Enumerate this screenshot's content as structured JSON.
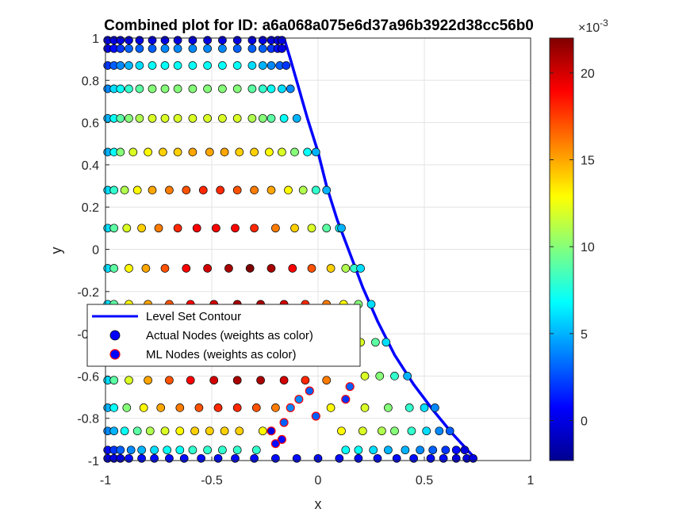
{
  "chart_data": {
    "type": "scatter",
    "title": "Combined plot for ID: a6a068a075e6d37a96b3922d38cc56b0",
    "xlabel": "x",
    "ylabel": "y",
    "xlim": [
      -1,
      1
    ],
    "ylim": [
      -1,
      1
    ],
    "x_ticks": [
      "-1",
      "-0.5",
      "0",
      "0.5",
      "1"
    ],
    "y_ticks": [
      "-1",
      "-0.8",
      "-0.6",
      "-0.4",
      "-0.2",
      "0",
      "0.2",
      "0.4",
      "0.6",
      "0.8",
      "1"
    ],
    "grid": true,
    "colormap": "jet",
    "colorbar": {
      "range": [
        -0.0023,
        0.022
      ],
      "tick_labels": [
        "0",
        "5",
        "10",
        "15",
        "20"
      ],
      "tick_values": [
        0,
        0.005,
        0.01,
        0.015,
        0.02
      ],
      "exponent_label": "×10",
      "exponent": "-3"
    },
    "legend": {
      "placement": "lower-left",
      "entries": [
        {
          "label": "Level Set Contour",
          "marker": "line",
          "color": "#0000ff"
        },
        {
          "label": "Actual Nodes (weights as color)",
          "marker": "circle",
          "color": "#0000ff"
        },
        {
          "label": "ML Nodes (weights as color)",
          "marker": "circle-red-edge",
          "color": "#0000ff"
        }
      ]
    },
    "contour": {
      "name": "Level Set Contour",
      "color": "#0000ff",
      "x": [
        -0.16,
        -0.13,
        -0.09,
        -0.05,
        0.0,
        0.04,
        0.09,
        0.15,
        0.21,
        0.28,
        0.36,
        0.45,
        0.54,
        0.63,
        0.73
      ],
      "y": [
        1.0,
        0.9,
        0.76,
        0.62,
        0.46,
        0.3,
        0.14,
        -0.02,
        -0.18,
        -0.34,
        -0.5,
        -0.64,
        -0.76,
        -0.87,
        -0.98
      ]
    },
    "series": [
      {
        "name": "Actual Nodes (weights as color)",
        "rows": [
          {
            "y": 0.99,
            "x": [
              -0.99,
              -0.96,
              -0.93,
              -0.89,
              -0.84,
              -0.78,
              -0.72,
              -0.66,
              -0.59,
              -0.52,
              -0.45,
              -0.38,
              -0.31,
              -0.26,
              -0.22,
              -0.19,
              -0.17
            ],
            "w": [
              0.0,
              0.0,
              0.0,
              0.0,
              0.0,
              0.0,
              0.0,
              0.0,
              0.0,
              0.0,
              0.0,
              0.0,
              0.0,
              0.0,
              0.0,
              0.0,
              0.0
            ]
          },
          {
            "y": 0.95,
            "x": [
              -0.99,
              -0.96,
              -0.93,
              -0.89,
              -0.84,
              -0.78,
              -0.72,
              -0.66,
              -0.59,
              -0.52,
              -0.45,
              -0.38,
              -0.31,
              -0.26,
              -0.22,
              -0.19,
              -0.17
            ],
            "w": [
              0.0,
              0.001,
              0.002,
              0.003,
              0.003,
              0.003,
              0.004,
              0.004,
              0.004,
              0.004,
              0.004,
              0.003,
              0.003,
              0.003,
              0.002,
              0.001,
              0.0
            ]
          },
          {
            "y": 0.87,
            "x": [
              -0.99,
              -0.96,
              -0.93,
              -0.89,
              -0.84,
              -0.78,
              -0.72,
              -0.66,
              -0.59,
              -0.52,
              -0.45,
              -0.38,
              -0.31,
              -0.26,
              -0.22,
              -0.18,
              -0.15
            ],
            "w": [
              0.002,
              0.003,
              0.004,
              0.005,
              0.006,
              0.007,
              0.007,
              0.007,
              0.007,
              0.007,
              0.007,
              0.007,
              0.006,
              0.005,
              0.004,
              0.003,
              0.002
            ]
          },
          {
            "y": 0.76,
            "x": [
              -0.99,
              -0.96,
              -0.93,
              -0.89,
              -0.84,
              -0.78,
              -0.72,
              -0.66,
              -0.59,
              -0.52,
              -0.45,
              -0.38,
              -0.31,
              -0.26,
              -0.22,
              -0.17,
              -0.13
            ],
            "w": [
              0.004,
              0.006,
              0.007,
              0.008,
              0.009,
              0.01,
              0.01,
              0.01,
              0.01,
              0.01,
              0.01,
              0.01,
              0.009,
              0.008,
              0.007,
              0.006,
              0.004
            ]
          },
          {
            "y": 0.62,
            "x": [
              -0.99,
              -0.96,
              -0.93,
              -0.89,
              -0.84,
              -0.78,
              -0.72,
              -0.66,
              -0.59,
              -0.52,
              -0.45,
              -0.38,
              -0.31,
              -0.26,
              -0.22,
              -0.16,
              -0.1
            ],
            "w": [
              0.005,
              0.007,
              0.009,
              0.01,
              0.011,
              0.012,
              0.012,
              0.012,
              0.012,
              0.012,
              0.012,
              0.012,
              0.011,
              0.01,
              0.009,
              0.007,
              0.005
            ]
          },
          {
            "y": 0.46,
            "x": [
              -0.99,
              -0.96,
              -0.93,
              -0.87,
              -0.8,
              -0.73,
              -0.66,
              -0.59,
              -0.51,
              -0.44,
              -0.37,
              -0.3,
              -0.23,
              -0.17,
              -0.11,
              -0.05,
              -0.01
            ],
            "w": [
              0.005,
              0.007,
              0.01,
              0.012,
              0.013,
              0.014,
              0.014,
              0.015,
              0.015,
              0.015,
              0.014,
              0.014,
              0.013,
              0.012,
              0.01,
              0.007,
              0.005
            ]
          },
          {
            "y": 0.28,
            "x": [
              -0.99,
              -0.96,
              -0.91,
              -0.85,
              -0.78,
              -0.7,
              -0.62,
              -0.54,
              -0.46,
              -0.38,
              -0.3,
              -0.22,
              -0.14,
              -0.07,
              -0.01,
              0.04
            ],
            "w": [
              0.006,
              0.008,
              0.011,
              0.013,
              0.015,
              0.016,
              0.017,
              0.018,
              0.018,
              0.017,
              0.016,
              0.015,
              0.013,
              0.011,
              0.008,
              0.005
            ]
          },
          {
            "y": 0.1,
            "x": [
              -0.99,
              -0.96,
              -0.9,
              -0.83,
              -0.75,
              -0.66,
              -0.57,
              -0.48,
              -0.39,
              -0.3,
              -0.2,
              -0.11,
              -0.03,
              0.04,
              0.1,
              0.11
            ],
            "w": [
              0.006,
              0.009,
              0.012,
              0.014,
              0.016,
              0.018,
              0.019,
              0.019,
              0.019,
              0.018,
              0.016,
              0.014,
              0.012,
              0.009,
              0.007,
              0.005
            ]
          },
          {
            "y": -0.09,
            "x": [
              -0.99,
              -0.96,
              -0.89,
              -0.81,
              -0.72,
              -0.62,
              -0.52,
              -0.42,
              -0.32,
              -0.22,
              -0.12,
              -0.03,
              0.06,
              0.13,
              0.17,
              0.2
            ],
            "w": [
              0.006,
              0.009,
              0.013,
              0.015,
              0.017,
              0.019,
              0.02,
              0.021,
              0.022,
              0.021,
              0.019,
              0.017,
              0.014,
              0.011,
              0.008,
              0.006
            ]
          },
          {
            "y": -0.26,
            "x": [
              -0.99,
              -0.96,
              -0.89,
              -0.8,
              -0.7,
              -0.6,
              -0.49,
              -0.38,
              -0.27,
              -0.16,
              -0.06,
              0.04,
              0.12,
              0.19,
              0.25
            ],
            "w": [
              0.006,
              0.009,
              0.013,
              0.015,
              0.017,
              0.019,
              0.02,
              0.021,
              0.021,
              0.02,
              0.018,
              0.016,
              0.013,
              0.01,
              0.006
            ]
          },
          {
            "y": -0.44,
            "x": [
              0.13,
              0.2,
              0.27,
              0.32
            ],
            "w": [
              0.014,
              0.012,
              0.009,
              0.006
            ]
          },
          {
            "y": -0.6,
            "x": [
              0.22,
              0.29,
              0.36,
              0.42
            ],
            "w": [
              0.012,
              0.01,
              0.008,
              0.005
            ]
          },
          {
            "y": -0.62,
            "x": [
              -0.99,
              -0.96,
              -0.89,
              -0.8,
              -0.7,
              -0.6,
              -0.49,
              -0.38,
              -0.27,
              -0.16,
              -0.06,
              0.04
            ],
            "w": [
              0.006,
              0.009,
              0.012,
              0.015,
              0.017,
              0.019,
              0.02,
              0.021,
              0.021,
              0.02,
              0.018,
              0.016
            ]
          },
          {
            "y": -0.75,
            "x": [
              -0.99,
              -0.96,
              -0.9,
              -0.82,
              -0.74,
              -0.65,
              -0.56,
              -0.47,
              -0.38,
              -0.29,
              -0.2,
              0.06,
              0.22,
              0.33,
              0.43,
              0.5,
              0.55
            ],
            "w": [
              0.005,
              0.007,
              0.01,
              0.013,
              0.015,
              0.016,
              0.017,
              0.018,
              0.018,
              0.017,
              0.016,
              0.013,
              0.012,
              0.01,
              0.008,
              0.006,
              0.004
            ]
          },
          {
            "y": -0.86,
            "x": [
              -0.99,
              -0.96,
              -0.91,
              -0.85,
              -0.79,
              -0.72,
              -0.65,
              -0.58,
              -0.51,
              -0.44,
              -0.37,
              -0.26,
              0.11,
              0.21,
              0.3,
              0.36,
              0.44,
              0.51,
              0.57,
              0.62
            ],
            "w": [
              0.004,
              0.005,
              0.007,
              0.009,
              0.011,
              0.012,
              0.013,
              0.014,
              0.014,
              0.014,
              0.014,
              0.013,
              0.013,
              0.012,
              0.011,
              0.01,
              0.008,
              0.006,
              0.004,
              0.003
            ]
          },
          {
            "y": -0.95,
            "x": [
              -0.99,
              -0.96,
              -0.93,
              -0.88,
              -0.83,
              -0.77,
              -0.71,
              -0.65,
              -0.59,
              -0.52,
              -0.45,
              -0.38,
              -0.29,
              0.13,
              0.19,
              0.26,
              0.33,
              0.41,
              0.48,
              0.54,
              0.6,
              0.65,
              0.69
            ],
            "w": [
              0.001,
              0.002,
              0.003,
              0.004,
              0.005,
              0.006,
              0.007,
              0.007,
              0.008,
              0.008,
              0.008,
              0.008,
              0.008,
              0.007,
              0.007,
              0.006,
              0.005,
              0.005,
              0.004,
              0.003,
              0.002,
              0.001,
              0.0
            ]
          },
          {
            "y": -0.99,
            "x": [
              -0.99,
              -0.96,
              -0.93,
              -0.89,
              -0.83,
              -0.77,
              -0.7,
              -0.63,
              -0.55,
              -0.47,
              -0.39,
              -0.3,
              -0.2,
              -0.1,
              0.0,
              0.1,
              0.19,
              0.28,
              0.37,
              0.45,
              0.53,
              0.59,
              0.65,
              0.7,
              0.73
            ],
            "w": [
              0.0,
              0.0,
              0.0,
              0.001,
              0.001,
              0.001,
              0.001,
              0.001,
              0.001,
              0.001,
              0.001,
              0.001,
              0.001,
              0.001,
              0.001,
              0.001,
              0.001,
              0.001,
              0.001,
              0.001,
              0.001,
              0.001,
              0.0,
              0.0,
              0.0
            ]
          }
        ]
      },
      {
        "name": "ML Nodes (weights as color)",
        "points": [
          {
            "x": -0.22,
            "y": -0.86,
            "w": 0.0
          },
          {
            "x": -0.2,
            "y": -0.92,
            "w": 0.001
          },
          {
            "x": -0.17,
            "y": -0.9,
            "w": 0.001
          },
          {
            "x": -0.16,
            "y": -0.82,
            "w": 0.003
          },
          {
            "x": -0.13,
            "y": -0.75,
            "w": 0.004
          },
          {
            "x": -0.09,
            "y": -0.71,
            "w": 0.004
          },
          {
            "x": -0.04,
            "y": -0.67,
            "w": 0.003
          },
          {
            "x": -0.01,
            "y": -0.79,
            "w": 0.003
          },
          {
            "x": 0.13,
            "y": -0.71,
            "w": 0.002
          },
          {
            "x": 0.15,
            "y": -0.65,
            "w": 0.003
          }
        ]
      }
    ]
  }
}
